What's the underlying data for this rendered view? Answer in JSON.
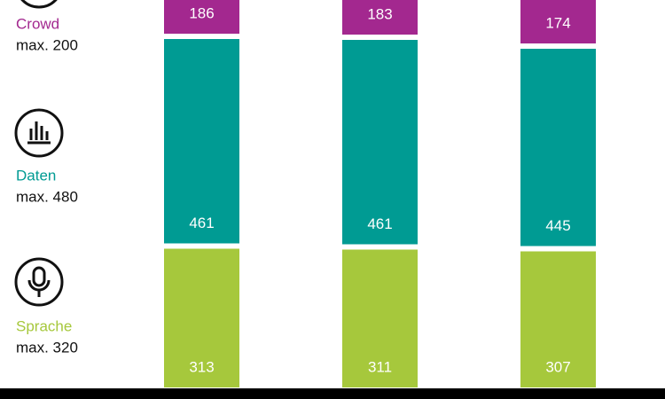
{
  "chart_data": {
    "type": "bar",
    "stacked": true,
    "categories": [
      null,
      null,
      null
    ],
    "series": [
      {
        "name": "Sprache",
        "max_label": "max. 320",
        "color": "#a6c83c",
        "values": [
          313,
          311,
          307
        ]
      },
      {
        "name": "Daten",
        "max_label": "max. 480",
        "color": "#009b93",
        "values": [
          461,
          461,
          445
        ]
      },
      {
        "name": "Crowd",
        "max_label": "max. 200",
        "color": "#a3288f",
        "values": [
          186,
          183,
          174
        ]
      }
    ]
  }
}
